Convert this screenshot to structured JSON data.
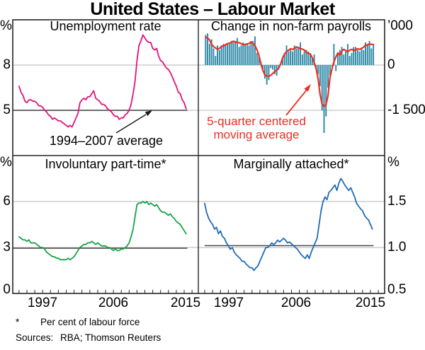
{
  "title": "United States – Labour Market",
  "x_years": [
    "1997",
    "2006",
    "2015"
  ],
  "axes": {
    "top_left_unit": "%",
    "top_right_unit": "’000",
    "bottom_left_unit": "%",
    "bottom_right_unit": "%",
    "top_left_ticks": [
      "8",
      "5"
    ],
    "top_right_ticks": [
      "0",
      "-1 500"
    ],
    "bottom_left_ticks": [
      "6",
      "3",
      "0"
    ],
    "bottom_right_ticks": [
      "1.5",
      "1.0",
      "0.5"
    ]
  },
  "footnote_marker": "*",
  "footnote_text": "Per cent of labour force",
  "sources_label": "Sources:",
  "sources_text": "RBA; Thomson Reuters",
  "colors": {
    "pink": "#e1137c",
    "teal": "#2a87a5",
    "red": "#ee2d24",
    "green": "#17a346",
    "blue": "#1f6cb4",
    "gridline": "#b5b5b5",
    "average_line": "#3f3f3f",
    "frame": "#262626"
  },
  "chart_data": [
    {
      "type": "line",
      "panel": "top-left",
      "title": "Unemployment rate",
      "unit": "%",
      "ylim": [
        2,
        11
      ],
      "gridlines": [
        5,
        8
      ],
      "x_start": 1994,
      "x_step": 0.25,
      "color": "#e1137c",
      "average_line": {
        "value": 5.0,
        "label": "1994–2007 average",
        "span": [
          1993.2,
          2015.4
        ]
      },
      "values": [
        6.6,
        6.2,
        6.0,
        5.6,
        5.5,
        5.7,
        5.7,
        5.6,
        5.6,
        5.5,
        5.3,
        5.3,
        5.2,
        5.0,
        4.9,
        4.7,
        4.6,
        4.4,
        4.5,
        4.4,
        4.3,
        4.3,
        4.2,
        4.1,
        4.0,
        3.9,
        4.0,
        3.9,
        4.2,
        4.5,
        4.8,
        5.5,
        5.7,
        5.8,
        5.7,
        5.9,
        5.9,
        6.1,
        6.3,
        5.8,
        5.7,
        5.6,
        5.4,
        5.4,
        5.3,
        5.1,
        5.0,
        4.9,
        4.7,
        4.6,
        4.6,
        4.4,
        4.5,
        4.5,
        4.7,
        4.8,
        5.0,
        5.4,
        6.1,
        6.9,
        8.3,
        9.3,
        9.6,
        10.0,
        9.8,
        9.6,
        9.5,
        9.5,
        9.1,
        9.0,
        9.1,
        8.6,
        8.3,
        8.2,
        8.0,
        7.8,
        7.7,
        7.5,
        7.2,
        6.9,
        6.6,
        6.2,
        6.1,
        5.7,
        5.5,
        5.1
      ]
    },
    {
      "type": "bar",
      "panel": "top-right",
      "title": "Change in non-farm payrolls",
      "unit": "’000",
      "ylim": [
        -3000,
        1500
      ],
      "gridlines": [
        -1500,
        0
      ],
      "x_start": 1994,
      "x_step": 0.25,
      "bar_color": "#2a87a5",
      "ma_color": "#ee2d24",
      "ma_window": 5,
      "ma_label_line1": "5-quarter centered",
      "ma_label_line2": "moving average",
      "values": [
        1000,
        1050,
        700,
        850,
        550,
        300,
        650,
        500,
        600,
        700,
        650,
        700,
        700,
        800,
        750,
        800,
        900,
        600,
        650,
        750,
        650,
        700,
        650,
        750,
        800,
        950,
        400,
        300,
        100,
        -150,
        -450,
        -650,
        -500,
        -100,
        -150,
        -300,
        -350,
        -150,
        50,
        250,
        400,
        650,
        450,
        500,
        450,
        650,
        550,
        600,
        750,
        350,
        450,
        500,
        450,
        350,
        200,
        350,
        -150,
        -300,
        -700,
        -1500,
        -2250,
        -1700,
        -750,
        -350,
        -50,
        700,
        -200,
        400,
        500,
        600,
        350,
        450,
        700,
        300,
        400,
        600,
        600,
        500,
        450,
        550,
        500,
        750,
        700,
        800,
        550,
        700
      ]
    },
    {
      "type": "line",
      "panel": "bottom-left",
      "title": "Involuntary part-time*",
      "unit": "%",
      "ylim": [
        0,
        9
      ],
      "gridlines": [
        3,
        6
      ],
      "x_start": 1994,
      "x_step": 0.25,
      "color": "#17a346",
      "average_line": {
        "value": 2.95,
        "span": [
          1993.2,
          2015.4
        ]
      },
      "values": [
        3.7,
        3.6,
        3.5,
        3.5,
        3.4,
        3.5,
        3.3,
        3.3,
        3.3,
        3.2,
        3.1,
        3.0,
        3.0,
        2.9,
        2.7,
        2.6,
        2.5,
        2.4,
        2.4,
        2.3,
        2.3,
        2.2,
        2.2,
        2.2,
        2.2,
        2.3,
        2.2,
        2.3,
        2.4,
        2.6,
        2.8,
        3.0,
        3.1,
        3.2,
        3.2,
        3.3,
        3.3,
        3.4,
        3.3,
        3.2,
        3.3,
        3.2,
        3.1,
        3.1,
        3.1,
        3.0,
        3.0,
        2.9,
        2.8,
        2.9,
        2.8,
        2.8,
        2.9,
        2.9,
        3.0,
        3.1,
        3.3,
        3.7,
        4.2,
        5.0,
        5.8,
        5.9,
        5.9,
        6.0,
        5.9,
        6.0,
        5.8,
        5.9,
        5.8,
        5.7,
        5.8,
        5.6,
        5.4,
        5.3,
        5.3,
        5.2,
        5.1,
        5.2,
        5.0,
        4.9,
        4.7,
        4.6,
        4.5,
        4.3,
        4.1,
        3.9
      ]
    },
    {
      "type": "line",
      "panel": "bottom-right",
      "title": "Marginally attached*",
      "unit": "%",
      "ylim": [
        0.5,
        2.0
      ],
      "gridlines": [
        1.0,
        1.5
      ],
      "x_start": 1994,
      "x_step": 0.25,
      "color": "#1f6cb4",
      "average_line": {
        "value": 1.02,
        "span": [
          1994,
          2015.4
        ]
      },
      "values": [
        1.48,
        1.38,
        1.32,
        1.28,
        1.25,
        1.2,
        1.22,
        1.15,
        1.18,
        1.12,
        1.1,
        1.05,
        1.02,
        0.98,
        1.0,
        0.95,
        0.92,
        0.9,
        0.88,
        0.85,
        0.85,
        0.82,
        0.8,
        0.78,
        0.78,
        0.75,
        0.78,
        0.8,
        0.85,
        0.9,
        0.95,
        1.0,
        1.0,
        1.02,
        1.05,
        1.03,
        1.05,
        1.08,
        1.06,
        1.08,
        1.1,
        1.08,
        1.05,
        1.06,
        1.04,
        1.02,
        1.0,
        0.98,
        0.95,
        0.92,
        0.9,
        0.88,
        0.92,
        0.88,
        0.95,
        1.0,
        1.05,
        1.1,
        1.25,
        1.4,
        1.5,
        1.55,
        1.52,
        1.6,
        1.62,
        1.65,
        1.68,
        1.62,
        1.7,
        1.75,
        1.72,
        1.68,
        1.65,
        1.62,
        1.65,
        1.6,
        1.55,
        1.48,
        1.45,
        1.42,
        1.4,
        1.35,
        1.32,
        1.3,
        1.25,
        1.2
      ]
    }
  ]
}
